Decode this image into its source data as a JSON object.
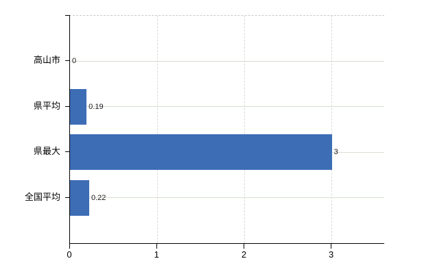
{
  "chart_data": {
    "type": "bar",
    "orientation": "horizontal",
    "title": "",
    "xlabel": "",
    "ylabel": "",
    "categories": [
      "高山市",
      "県平均",
      "県最大",
      "全国平均"
    ],
    "values": [
      0,
      0.19,
      3,
      0.22
    ],
    "value_labels": [
      "0",
      "0.19",
      "3",
      "0.22"
    ],
    "x_ticks": [
      0,
      1,
      2,
      3
    ],
    "x_tick_labels": [
      "0",
      "1",
      "2",
      "3"
    ],
    "xlim": [
      0,
      3.6
    ],
    "grid": true,
    "legend": false,
    "colors": {
      "bar": "#3d6db5",
      "h_gridline": "#d6e0d2",
      "v_gridline": "#d8d8d8",
      "top_border": "#c9c9c9",
      "axis": "#000000",
      "text": "#000000"
    }
  }
}
